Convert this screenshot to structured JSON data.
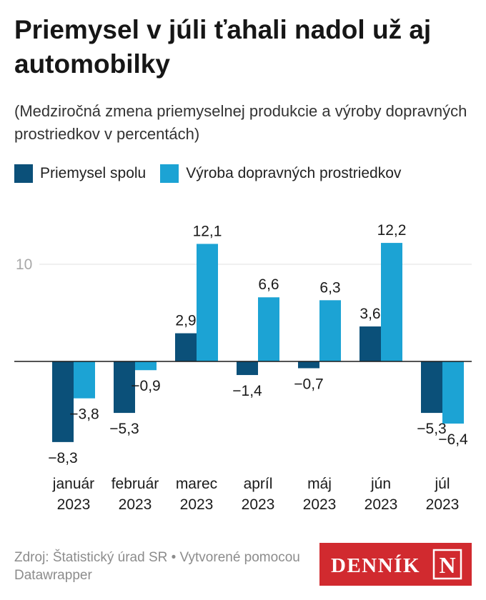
{
  "title": "Priemysel v júli ťahali nadol už aj automobilky",
  "subtitle": "(Medziročná zmena priemyselnej produkcie a výroby dopravných prostriedkov v percentách)",
  "source": "Zdroj: Štatistický úrad SR • Vytvorené pomocou Datawrapper",
  "logo": {
    "text": "DENNÍK",
    "letter": "N"
  },
  "colors": {
    "series1": "#0b5079",
    "series2": "#1ca3d4",
    "grid": "#e0e0e0",
    "baseline": "#1a1a1a",
    "logo_bg": "#d12a2f"
  },
  "chart_data": {
    "type": "bar",
    "title": "Priemysel v júli ťahali nadol už aj automobilky",
    "subtitle": "(Medziročná zmena priemyselnej produkcie a výroby dopravných prostriedkov v percentách)",
    "categories": [
      [
        "január",
        "2023"
      ],
      [
        "február",
        "2023"
      ],
      [
        "marec",
        "2023"
      ],
      [
        "apríl",
        "2023"
      ],
      [
        "máj",
        "2023"
      ],
      [
        "jún",
        "2023"
      ],
      [
        "júl",
        "2023"
      ]
    ],
    "series": [
      {
        "name": "Priemysel spolu",
        "values": [
          -8.3,
          -5.3,
          2.9,
          -1.4,
          -0.7,
          3.6,
          -5.3
        ],
        "labels": [
          "−8,3",
          "−5,3",
          "2,9",
          "−1,4",
          "−0,7",
          "3,6",
          "−5,3"
        ]
      },
      {
        "name": "Výroba dopravných prostriedkov",
        "values": [
          -3.8,
          -0.9,
          12.1,
          6.6,
          6.3,
          12.2,
          -6.4
        ],
        "labels": [
          "−3,8",
          "−0,9",
          "12,1",
          "6,6",
          "6,3",
          "12,2",
          "−6,4"
        ]
      }
    ],
    "yticks": [
      {
        "value": 10,
        "label": "10"
      }
    ],
    "ylim": [
      -8.3,
      12.2
    ],
    "grid": true,
    "legend": "top-left",
    "xlabel": "",
    "ylabel": ""
  }
}
